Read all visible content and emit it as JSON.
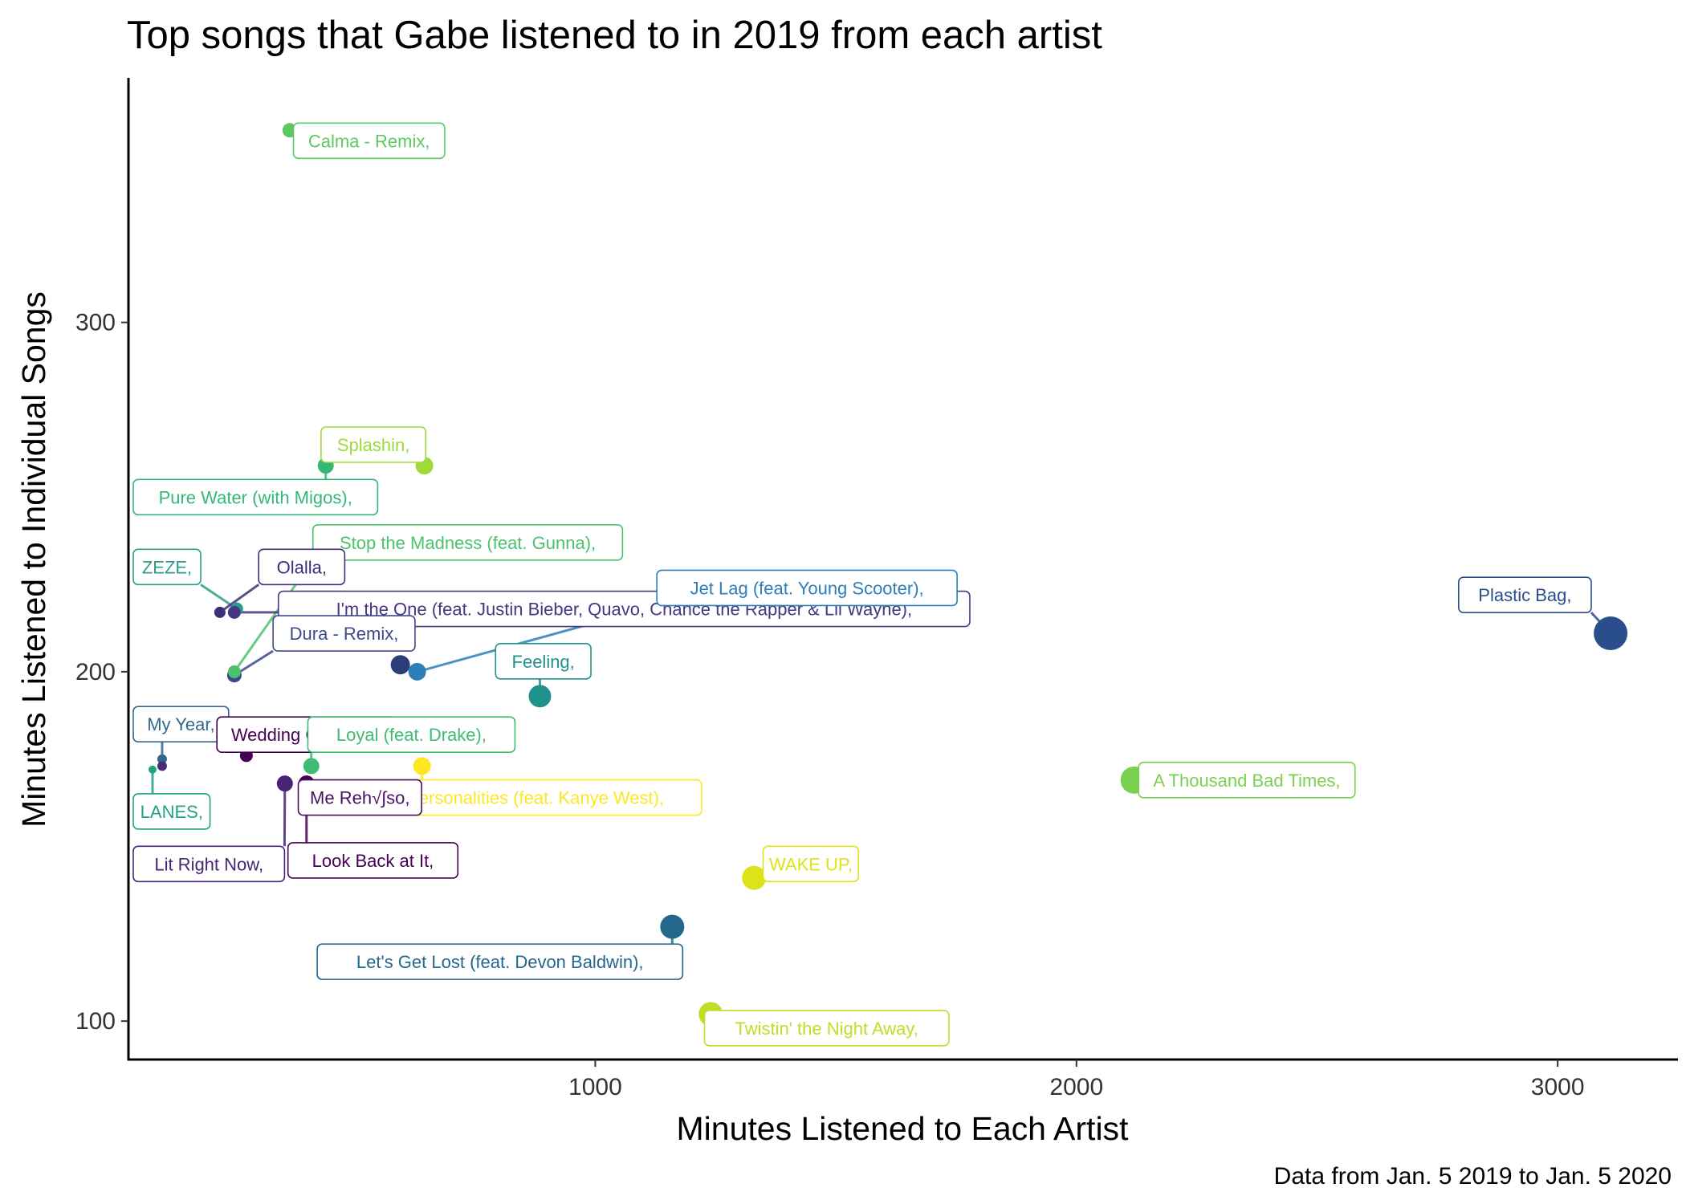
{
  "chart_data": {
    "type": "scatter",
    "title": "Top songs that Gabe listened to in 2019 from each artist",
    "xlabel": "Minutes Listened to Each Artist",
    "ylabel": "Minutes Listened to Individual Songs",
    "caption": "Data from Jan. 5 2019 to Jan. 5 2020",
    "xlim": [
      30,
      3250
    ],
    "ylim": [
      89,
      370
    ],
    "xticks": [
      1000,
      2000,
      3000
    ],
    "yticks": [
      100,
      200,
      300
    ],
    "grid": false,
    "legend": "none",
    "points": [
      {
        "label": "Calma - Remix,",
        "x": 365,
        "y": 355,
        "size": 9,
        "color": "#5ec962",
        "lx": 530,
        "ly": 352
      },
      {
        "label": "Splashin,",
        "x": 645,
        "y": 259,
        "size": 11,
        "color": "#a0da39",
        "lx": 539,
        "ly": 265
      },
      {
        "label": "Pure Water (with Migos),",
        "x": 440,
        "y": 259,
        "size": 10,
        "color": "#35b779",
        "lx": 244,
        "ly": 250
      },
      {
        "label": "Stop the Madness (feat. Gunna),",
        "x": 250,
        "y": 200,
        "size": 8,
        "color": "#4cc26c",
        "lx": 735,
        "ly": 237
      },
      {
        "label": "ZEZE,",
        "x": 255,
        "y": 218,
        "size": 8,
        "color": "#2a9d8a",
        "lx": 102,
        "ly": 230
      },
      {
        "label": "Olalla,",
        "x": 220,
        "y": 217,
        "size": 7,
        "color": "#3b2f7a",
        "lx": 390,
        "ly": 230
      },
      {
        "label": "I'm the One (feat. Justin Bieber, Quavo, Chance the Rapper & Lil Wayne),",
        "x": 250,
        "y": 217,
        "size": 8,
        "color": "#453781",
        "lx": 1060,
        "ly": 218
      },
      {
        "label": "Jet Lag (feat. Young Scooter),",
        "x": 630,
        "y": 200,
        "size": 11,
        "color": "#2c7fb8",
        "lx": 1440,
        "ly": 224
      },
      {
        "label": "Plastic Bag,",
        "x": 3110,
        "y": 211,
        "size": 21,
        "color": "#2a4d8b",
        "lx": 2932,
        "ly": 222
      },
      {
        "label": "Dura - Remix,",
        "x": 250,
        "y": 199,
        "size": 9,
        "color": "#3e4989",
        "lx": 478,
        "ly": 211
      },
      {
        "label": "",
        "x": 595,
        "y": 202,
        "size": 12,
        "color": "#2c3e7a",
        "lx": 0,
        "ly": 0
      },
      {
        "label": "Feeling,",
        "x": 885,
        "y": 193,
        "size": 14,
        "color": "#21918c",
        "lx": 892,
        "ly": 203
      },
      {
        "label": "My Year,",
        "x": 100,
        "y": 175,
        "size": 6,
        "color": "#31688e",
        "lx": 92,
        "ly": 185
      },
      {
        "label": "Wedding Crashers,",
        "x": 275,
        "y": 176,
        "size": 8,
        "color": "#440154",
        "lx": 400,
        "ly": 182
      },
      {
        "label": "Loyal (feat. Drake),",
        "x": 410,
        "y": 173,
        "size": 10,
        "color": "#3dbc74",
        "lx": 618,
        "ly": 182
      },
      {
        "label": "",
        "x": 100,
        "y": 173,
        "size": 6,
        "color": "#472d7b",
        "lx": 0,
        "ly": 0
      },
      {
        "label": "LANES,",
        "x": 80,
        "y": 172,
        "size": 5,
        "color": "#20a386",
        "lx": 72,
        "ly": 160
      },
      {
        "label": "Mixed Personalities (feat. Kanye West),",
        "x": 640,
        "y": 173,
        "size": 11,
        "color": "#fde725",
        "lx": 822,
        "ly": 164
      },
      {
        "label": "A Thousand Bad Times,",
        "x": 2120,
        "y": 169,
        "size": 17,
        "color": "#7ad151",
        "lx": 2354,
        "ly": 169
      },
      {
        "label": "Lit Right Now,",
        "x": 355,
        "y": 168,
        "size": 10,
        "color": "#482475",
        "lx": 93,
        "ly": 145
      },
      {
        "label": "Me Reh√∫so,",
        "x": 400,
        "y": 168,
        "size": 10,
        "color": "#471063",
        "lx": 511,
        "ly": 164
      },
      {
        "label": "Look Back at It,",
        "x": 400,
        "y": 168,
        "size": 10,
        "color": "#440154",
        "lx": 538,
        "ly": 146
      },
      {
        "label": "WAKE UP,",
        "x": 1330,
        "y": 141,
        "size": 15,
        "color": "#dde318",
        "lx": 1448,
        "ly": 145
      },
      {
        "label": "Let's Get Lost (feat. Devon Baldwin),",
        "x": 1160,
        "y": 127,
        "size": 15,
        "color": "#24688e",
        "lx": 802,
        "ly": 117
      },
      {
        "label": "Twistin' the Night Away,",
        "x": 1240,
        "y": 102,
        "size": 15,
        "color": "#bddf26",
        "lx": 1481,
        "ly": 98
      }
    ]
  }
}
